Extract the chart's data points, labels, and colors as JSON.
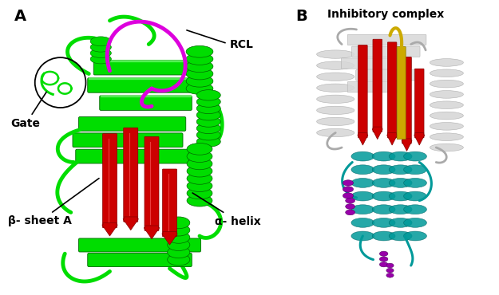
{
  "panel_A_label": "A",
  "panel_B_label": "B",
  "rcl_label": "RCL",
  "gate_label": "Gate",
  "beta_sheet_label": "β- sheet A",
  "alpha_helix_label": "α- helix",
  "inhibitory_label": "Inhibitory complex",
  "background_color": "#ffffff",
  "label_fontsize": 10,
  "panel_label_fontsize": 14,
  "green": "#00DD00",
  "dark_green": "#006600",
  "red": "#CC0000",
  "dark_red": "#880000",
  "magenta": "#DD00DD",
  "dark_magenta": "#880088",
  "gray_light": "#D8D8D8",
  "gray_mid": "#AAAAAA",
  "gray_dark": "#666666",
  "yellow": "#CCAA00",
  "dark_yellow": "#887700",
  "teal": "#009999",
  "dark_teal": "#006666",
  "purple": "#9900AA",
  "dark_purple": "#550066"
}
